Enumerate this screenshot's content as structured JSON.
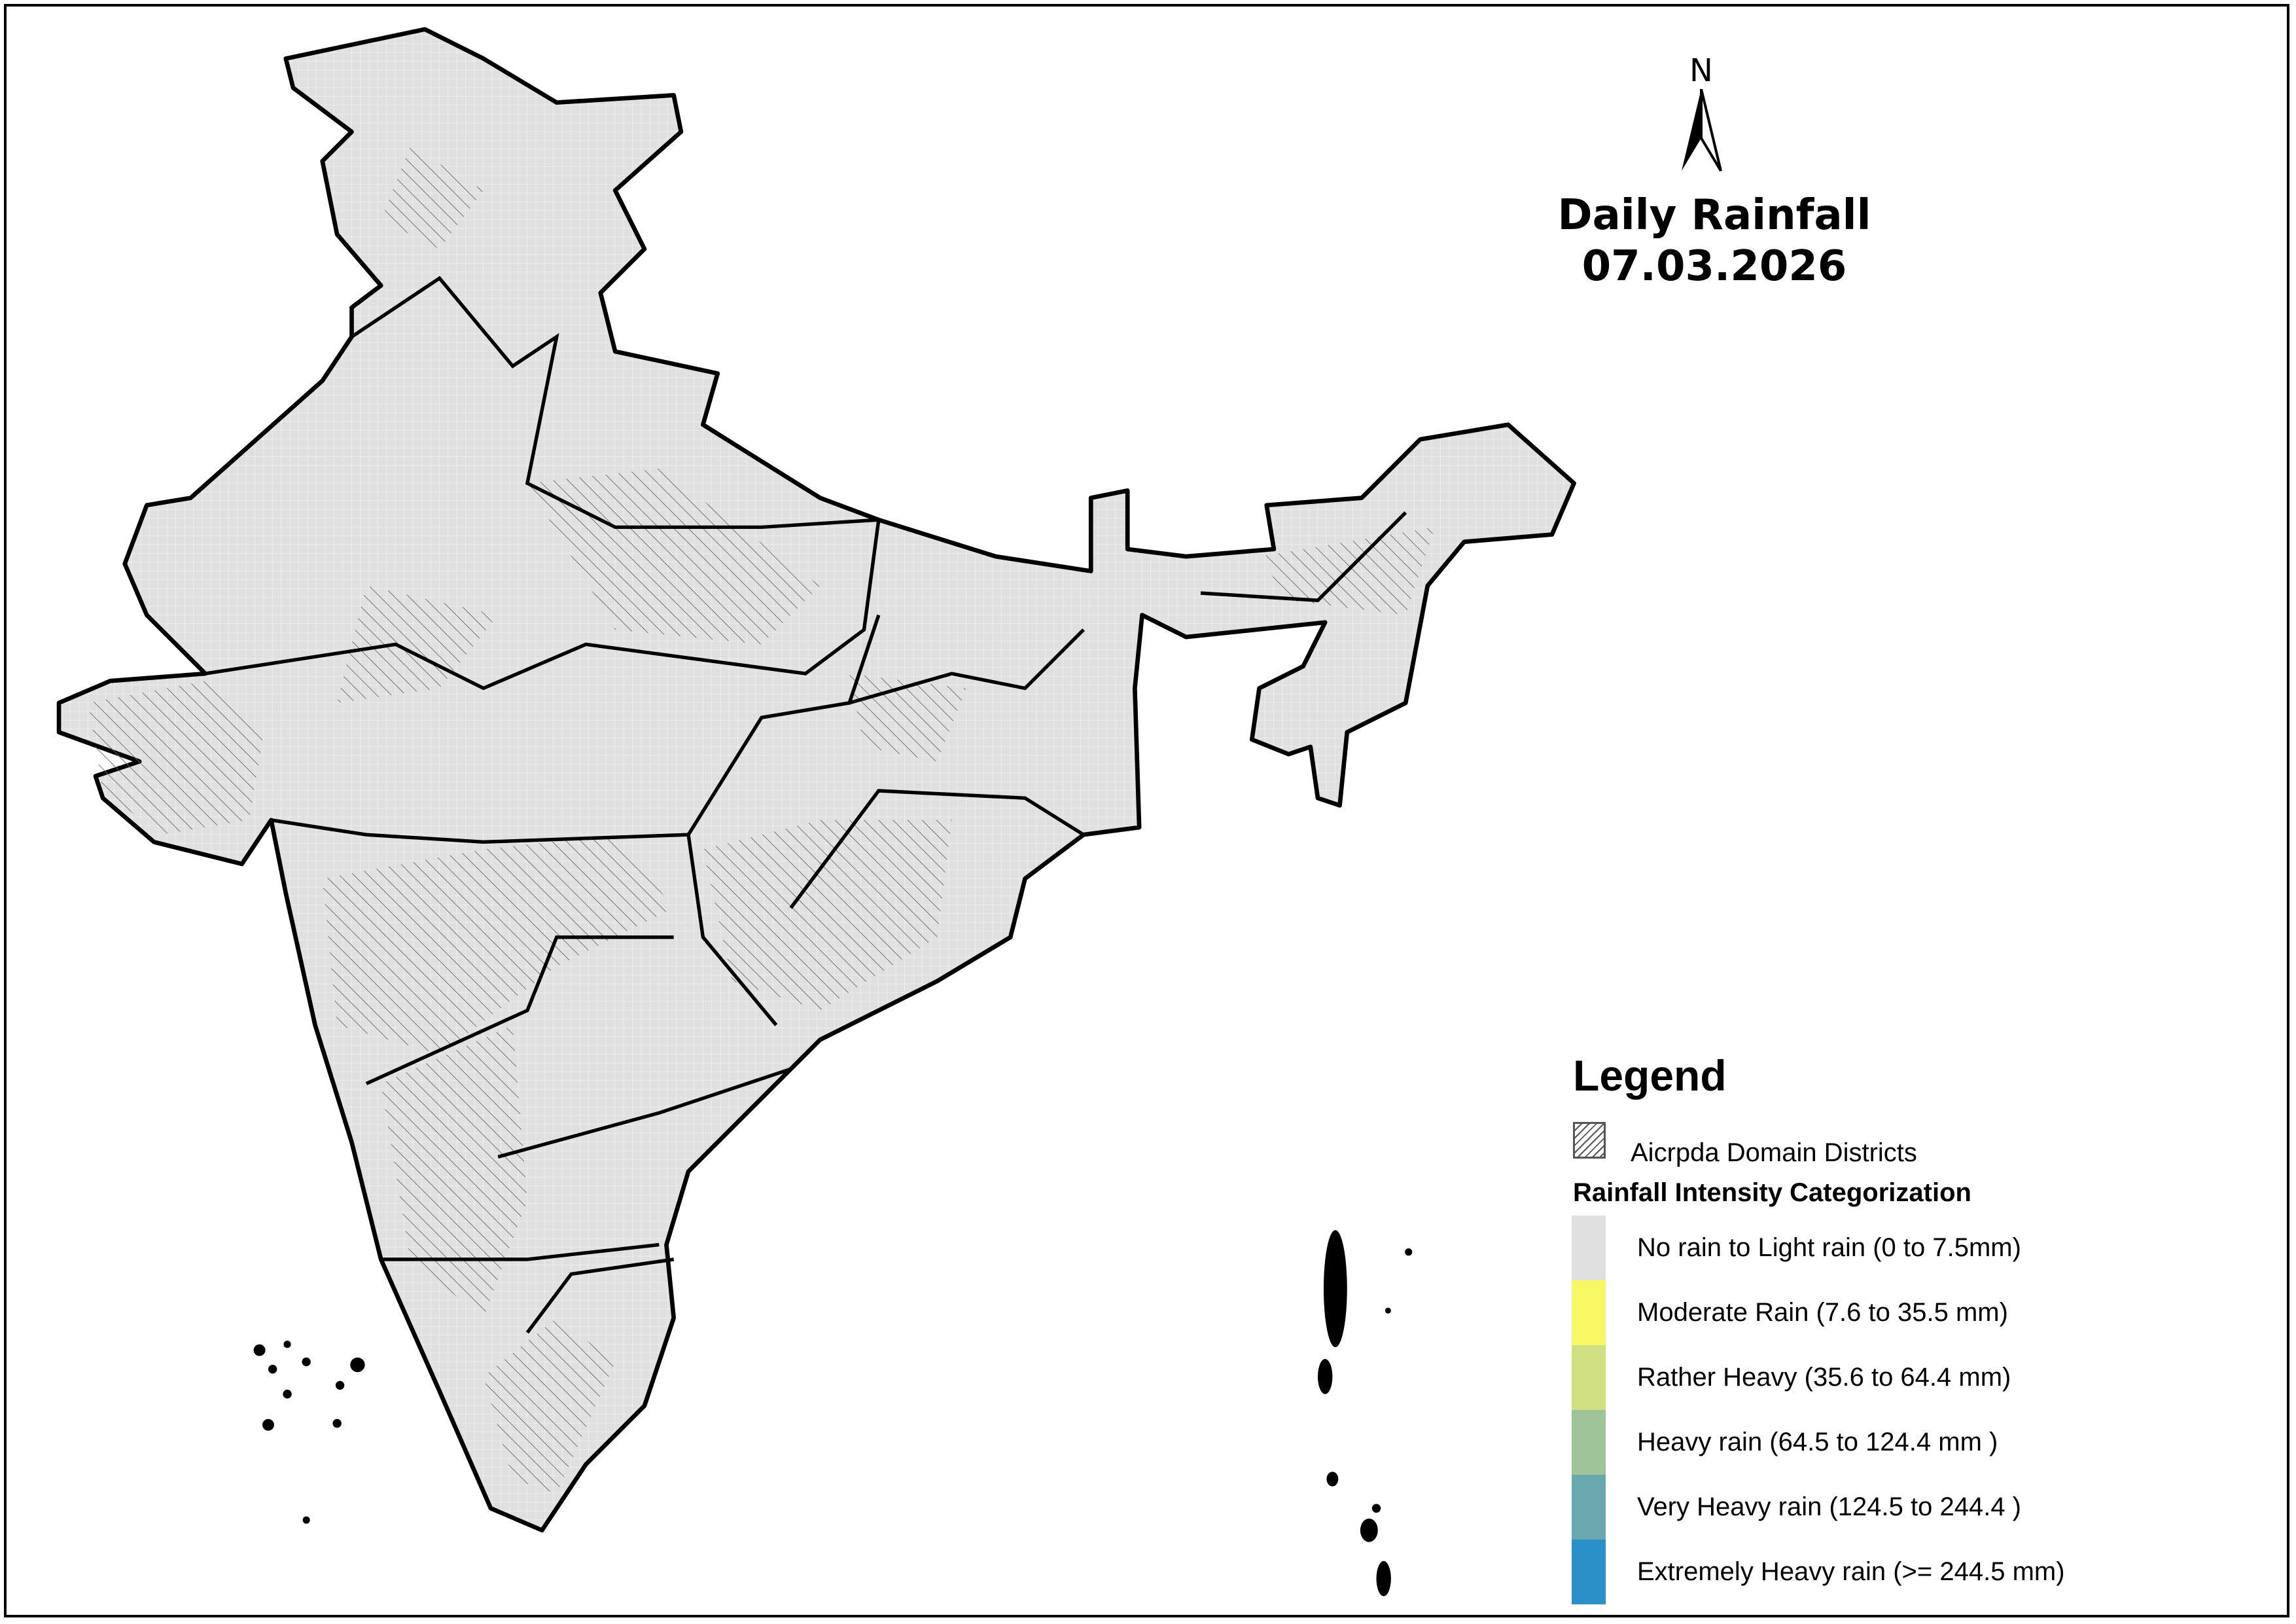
{
  "title": {
    "line1": "Daily Rainfall",
    "line2": "07.03.2026"
  },
  "north_arrow": {
    "label": "N",
    "icon": "north-arrow-icon"
  },
  "map": {
    "land_color": "#e0e0e0",
    "border_color": "#000000",
    "district_color": "#888888"
  },
  "legend": {
    "title": "Legend",
    "hatch_label": "Aicrpda Domain Districts",
    "category_title": "Rainfall Intensity Categorization",
    "categories": [
      {
        "label": "No rain to Light rain (0 to 7.5mm)",
        "color": "#e0e0e0"
      },
      {
        "label": "Moderate Rain (7.6 to 35.5 mm)",
        "color": "#f8f864"
      },
      {
        "label": "Rather Heavy (35.6 to 64.4 mm)",
        "color": "#d2e084"
      },
      {
        "label": "Heavy rain (64.5 to 124.4 mm )",
        "color": "#a0c49a"
      },
      {
        "label": "Very Heavy rain (124.5 to 244.4 )",
        "color": "#6aa8b0"
      },
      {
        "label": "Extremely Heavy rain  (>= 244.5 mm)",
        "color": "#2b90c8"
      }
    ]
  }
}
